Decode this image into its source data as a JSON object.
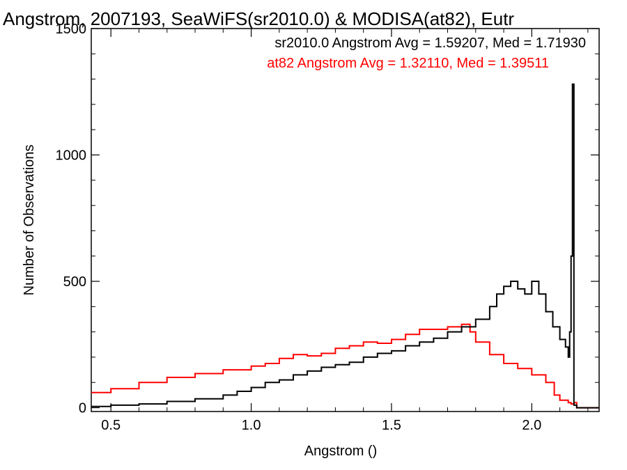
{
  "chart_data": {
    "type": "line",
    "title": "Angstrom, 2007193, SeaWiFS(sr2010.0) & MODISA(at82), Eutr",
    "xlabel": "Angstrom ()",
    "ylabel": "Number of Observations",
    "xlim": [
      0.43,
      2.24
    ],
    "ylim": [
      -15,
      1500
    ],
    "xticks": [
      0.5,
      1.0,
      1.5,
      2.0
    ],
    "xtick_labels": [
      "0.5",
      "1.0",
      "1.5",
      "2.0"
    ],
    "yticks": [
      0,
      500,
      1000,
      1500
    ],
    "ytick_labels": [
      "0",
      "500",
      "1000",
      "1500"
    ],
    "grid": false,
    "annotations": [
      {
        "text": "sr2010.0 Angstrom Avg = 1.59207, Med = 1.71930",
        "color": "#000000"
      },
      {
        "text": "at82 Angstrom Avg = 1.32110, Med = 1.39511",
        "color": "#ff0000"
      }
    ],
    "series": [
      {
        "color": "#000000",
        "x": [
          0.43,
          0.5,
          0.6,
          0.7,
          0.8,
          0.9,
          0.95,
          1.0,
          1.05,
          1.1,
          1.15,
          1.2,
          1.25,
          1.3,
          1.35,
          1.4,
          1.45,
          1.5,
          1.55,
          1.6,
          1.65,
          1.7,
          1.75,
          1.8,
          1.85,
          1.875,
          1.9,
          1.925,
          1.95,
          1.975,
          2.0,
          2.025,
          2.05,
          2.075,
          2.1,
          2.12,
          2.13,
          2.135,
          2.14,
          2.145,
          2.15,
          2.16,
          2.24
        ],
        "y": [
          5,
          10,
          15,
          25,
          35,
          50,
          65,
          80,
          100,
          110,
          130,
          145,
          160,
          170,
          180,
          200,
          215,
          225,
          245,
          260,
          275,
          300,
          320,
          350,
          400,
          450,
          480,
          500,
          470,
          450,
          500,
          450,
          380,
          320,
          270,
          240,
          200,
          300,
          600,
          1280,
          10,
          0,
          0
        ]
      },
      {
        "color": "#ff0000",
        "x": [
          0.43,
          0.5,
          0.6,
          0.7,
          0.8,
          0.9,
          1.0,
          1.05,
          1.1,
          1.15,
          1.2,
          1.25,
          1.3,
          1.35,
          1.4,
          1.45,
          1.5,
          1.55,
          1.6,
          1.65,
          1.7,
          1.75,
          1.78,
          1.8,
          1.85,
          1.9,
          1.95,
          2.0,
          2.05,
          2.08,
          2.1,
          2.13,
          2.14,
          2.15,
          2.16,
          2.24
        ],
        "y": [
          60,
          75,
          100,
          120,
          135,
          150,
          165,
          175,
          195,
          210,
          205,
          215,
          235,
          245,
          260,
          255,
          270,
          290,
          310,
          310,
          320,
          330,
          300,
          260,
          210,
          175,
          155,
          130,
          100,
          50,
          30,
          20,
          15,
          20,
          0,
          0
        ]
      }
    ]
  }
}
